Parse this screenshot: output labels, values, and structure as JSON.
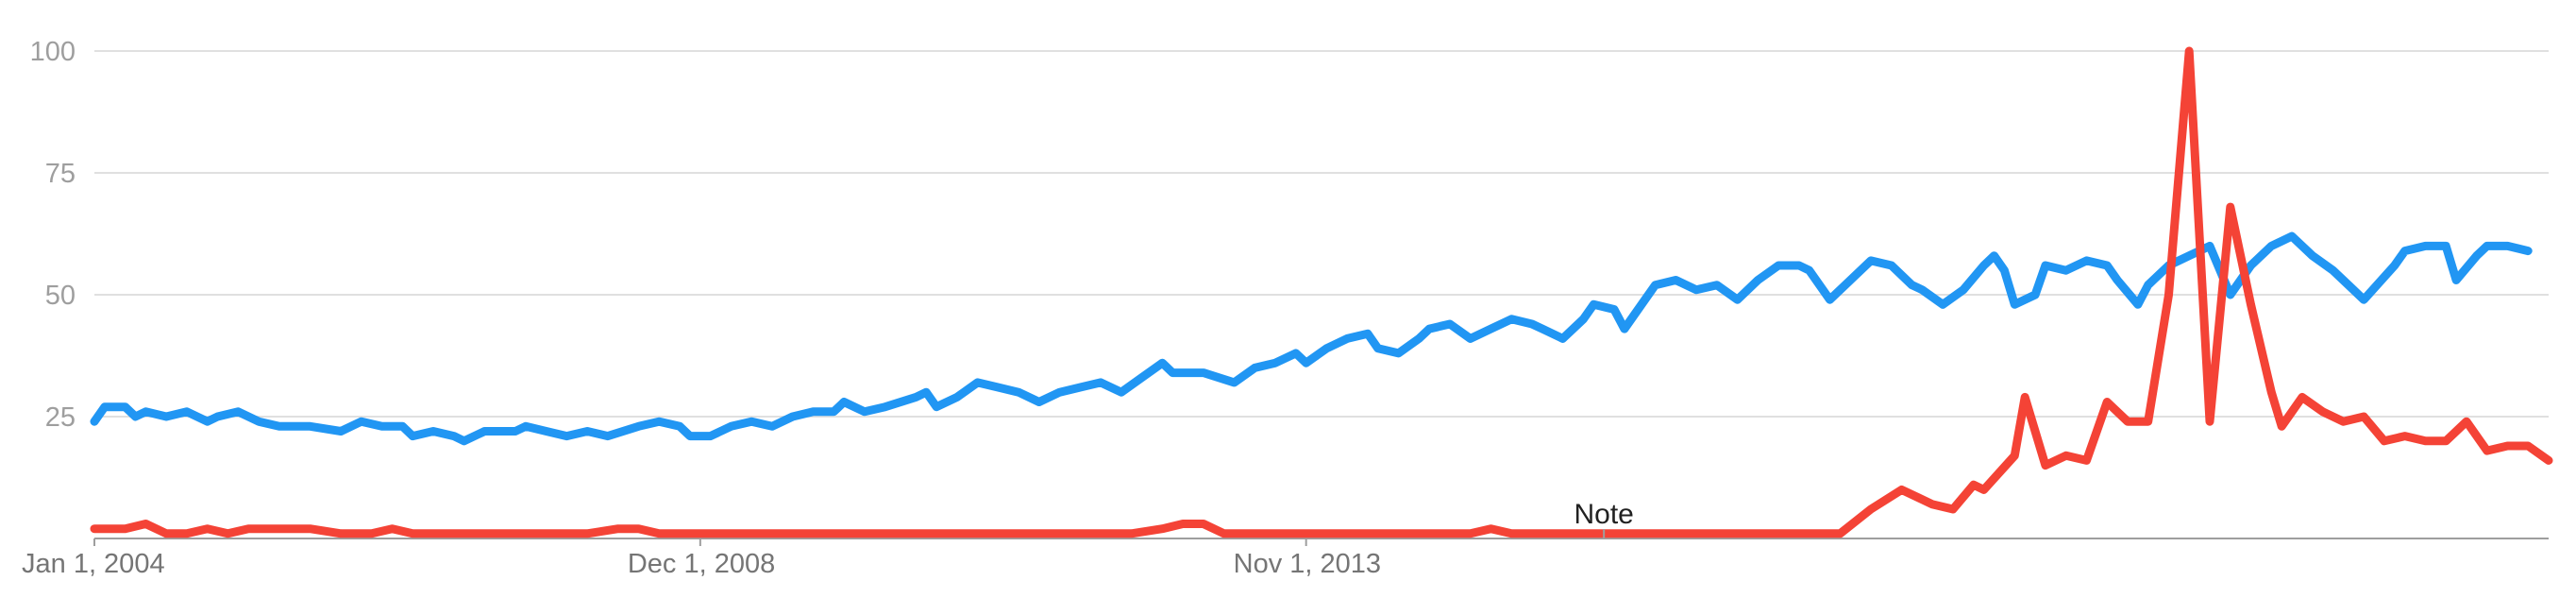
{
  "chart_data": {
    "type": "line",
    "title": "",
    "xlabel": "",
    "ylabel": "",
    "ylim": [
      0,
      100
    ],
    "y_ticks": [
      25,
      50,
      75,
      100
    ],
    "x_ticks": [
      {
        "label": "Jan 1, 2004",
        "date": "2004-01"
      },
      {
        "label": "Dec 1, 2008",
        "date": "2008-12"
      },
      {
        "label": "Nov 1, 2013",
        "date": "2013-11"
      }
    ],
    "grid": true,
    "legend": "none",
    "annotations": [
      {
        "label": "Note",
        "date": "2016-04"
      }
    ],
    "x_start": "2004-01",
    "x_end": "2019-01",
    "series": [
      {
        "color": "#2196f3",
        "points": [
          [
            "2004-01",
            24
          ],
          [
            "2004-02",
            27
          ],
          [
            "2004-04",
            27
          ],
          [
            "2004-05",
            25
          ],
          [
            "2004-06",
            26
          ],
          [
            "2004-08",
            25
          ],
          [
            "2004-10",
            26
          ],
          [
            "2004-12",
            24
          ],
          [
            "2005-01",
            25
          ],
          [
            "2005-03",
            26
          ],
          [
            "2005-05",
            24
          ],
          [
            "2005-07",
            23
          ],
          [
            "2005-10",
            23
          ],
          [
            "2006-01",
            22
          ],
          [
            "2006-03",
            24
          ],
          [
            "2006-05",
            23
          ],
          [
            "2006-07",
            23
          ],
          [
            "2006-08",
            21
          ],
          [
            "2006-10",
            22
          ],
          [
            "2006-12",
            21
          ],
          [
            "2007-01",
            20
          ],
          [
            "2007-03",
            22
          ],
          [
            "2007-06",
            22
          ],
          [
            "2007-07",
            23
          ],
          [
            "2007-09",
            22
          ],
          [
            "2007-11",
            21
          ],
          [
            "2008-01",
            22
          ],
          [
            "2008-03",
            21
          ],
          [
            "2008-06",
            23
          ],
          [
            "2008-08",
            24
          ],
          [
            "2008-10",
            23
          ],
          [
            "2008-11",
            21
          ],
          [
            "2009-01",
            21
          ],
          [
            "2009-03",
            23
          ],
          [
            "2009-05",
            24
          ],
          [
            "2009-07",
            23
          ],
          [
            "2009-09",
            25
          ],
          [
            "2009-11",
            26
          ],
          [
            "2010-01",
            26
          ],
          [
            "2010-02",
            28
          ],
          [
            "2010-04",
            26
          ],
          [
            "2010-06",
            27
          ],
          [
            "2010-09",
            29
          ],
          [
            "2010-10",
            30
          ],
          [
            "2010-11",
            27
          ],
          [
            "2011-01",
            29
          ],
          [
            "2011-03",
            32
          ],
          [
            "2011-05",
            31
          ],
          [
            "2011-07",
            30
          ],
          [
            "2011-09",
            28
          ],
          [
            "2011-11",
            30
          ],
          [
            "2012-01",
            31
          ],
          [
            "2012-03",
            32
          ],
          [
            "2012-05",
            30
          ],
          [
            "2012-07",
            33
          ],
          [
            "2012-09",
            36
          ],
          [
            "2012-10",
            34
          ],
          [
            "2013-01",
            34
          ],
          [
            "2013-04",
            32
          ],
          [
            "2013-06",
            35
          ],
          [
            "2013-08",
            36
          ],
          [
            "2013-10",
            38
          ],
          [
            "2013-11",
            36
          ],
          [
            "2014-01",
            39
          ],
          [
            "2014-03",
            41
          ],
          [
            "2014-05",
            42
          ],
          [
            "2014-06",
            39
          ],
          [
            "2014-08",
            38
          ],
          [
            "2014-10",
            41
          ],
          [
            "2014-11",
            43
          ],
          [
            "2015-01",
            44
          ],
          [
            "2015-03",
            41
          ],
          [
            "2015-05",
            43
          ],
          [
            "2015-07",
            45
          ],
          [
            "2015-09",
            44
          ],
          [
            "2015-10",
            43
          ],
          [
            "2015-12",
            41
          ],
          [
            "2016-02",
            45
          ],
          [
            "2016-03",
            48
          ],
          [
            "2016-05",
            47
          ],
          [
            "2016-06",
            43
          ],
          [
            "2016-07",
            46
          ],
          [
            "2016-09",
            52
          ],
          [
            "2016-11",
            53
          ],
          [
            "2017-01",
            51
          ],
          [
            "2017-03",
            52
          ],
          [
            "2017-05",
            49
          ],
          [
            "2017-07",
            53
          ],
          [
            "2017-09",
            56
          ],
          [
            "2017-11",
            56
          ],
          [
            "2017-12",
            55
          ],
          [
            "2018-02",
            49
          ],
          [
            "2018-04",
            53
          ],
          [
            "2018-06",
            57
          ],
          [
            "2018-08",
            56
          ],
          [
            "2018-10",
            52
          ],
          [
            "2018-11",
            51
          ],
          [
            "2019-01",
            48
          ],
          [
            "2019-03",
            51
          ],
          [
            "2019-05",
            56
          ],
          [
            "2019-06",
            58
          ],
          [
            "2019-07",
            55
          ],
          [
            "2019-08",
            48
          ],
          [
            "2019-10",
            50
          ],
          [
            "2019-11",
            56
          ],
          [
            "2020-01",
            55
          ],
          [
            "2020-03",
            57
          ],
          [
            "2020-05",
            56
          ],
          [
            "2020-06",
            53
          ],
          [
            "2020-08",
            48
          ],
          [
            "2020-09",
            52
          ],
          [
            "2020-11",
            56
          ],
          [
            "2021-01",
            58
          ],
          [
            "2021-03",
            60
          ],
          [
            "2021-05",
            50
          ],
          [
            "2021-07",
            56
          ],
          [
            "2021-09",
            60
          ],
          [
            "2021-11",
            62
          ],
          [
            "2022-01",
            58
          ],
          [
            "2022-03",
            55
          ],
          [
            "2022-05",
            51
          ],
          [
            "2022-06",
            49
          ],
          [
            "2022-09",
            56
          ],
          [
            "2022-10",
            59
          ],
          [
            "2022-12",
            60
          ],
          [
            "2023-02",
            60
          ],
          [
            "2023-03",
            53
          ],
          [
            "2023-05",
            58
          ],
          [
            "2023-06",
            60
          ],
          [
            "2023-08",
            60
          ],
          [
            "2023-10",
            59
          ]
        ]
      },
      {
        "color": "#f44336",
        "points": [
          [
            "2004-01",
            2
          ],
          [
            "2004-04",
            2
          ],
          [
            "2004-06",
            3
          ],
          [
            "2004-08",
            1
          ],
          [
            "2004-10",
            1
          ],
          [
            "2004-12",
            2
          ],
          [
            "2005-02",
            1
          ],
          [
            "2005-04",
            2
          ],
          [
            "2005-07",
            2
          ],
          [
            "2005-10",
            2
          ],
          [
            "2006-01",
            1
          ],
          [
            "2006-04",
            1
          ],
          [
            "2006-06",
            2
          ],
          [
            "2006-08",
            1
          ],
          [
            "2007-01",
            1
          ],
          [
            "2008-01",
            1
          ],
          [
            "2008-04",
            2
          ],
          [
            "2008-06",
            2
          ],
          [
            "2008-08",
            1
          ],
          [
            "2012-01",
            1
          ],
          [
            "2012-06",
            1
          ],
          [
            "2012-09",
            2
          ],
          [
            "2012-11",
            3
          ],
          [
            "2013-01",
            3
          ],
          [
            "2013-03",
            1
          ],
          [
            "2015-01",
            1
          ],
          [
            "2015-03",
            1
          ],
          [
            "2015-05",
            2
          ],
          [
            "2015-07",
            1
          ],
          [
            "2018-01",
            1
          ],
          [
            "2018-03",
            1
          ],
          [
            "2018-06",
            6
          ],
          [
            "2018-09",
            10
          ],
          [
            "2018-12",
            7
          ],
          [
            "2019-02",
            6
          ],
          [
            "2019-04",
            11
          ],
          [
            "2019-05",
            10
          ],
          [
            "2019-08",
            17
          ],
          [
            "2019-09",
            29
          ],
          [
            "2019-11",
            15
          ],
          [
            "2020-01",
            17
          ],
          [
            "2020-03",
            16
          ],
          [
            "2020-05",
            28
          ],
          [
            "2020-07",
            24
          ],
          [
            "2020-09",
            24
          ],
          [
            "2020-11",
            50
          ],
          [
            "2021-01",
            100
          ],
          [
            "2021-03",
            24
          ],
          [
            "2021-05",
            68
          ],
          [
            "2021-07",
            48
          ],
          [
            "2021-09",
            30
          ],
          [
            "2021-10",
            23
          ],
          [
            "2021-12",
            29
          ],
          [
            "2022-02",
            26
          ],
          [
            "2022-04",
            24
          ],
          [
            "2022-06",
            25
          ],
          [
            "2022-08",
            20
          ],
          [
            "2022-10",
            21
          ],
          [
            "2022-12",
            20
          ],
          [
            "2023-02",
            20
          ],
          [
            "2023-04",
            24
          ],
          [
            "2023-06",
            18
          ],
          [
            "2023-08",
            19
          ],
          [
            "2023-10",
            19
          ],
          [
            "2023-12",
            16
          ]
        ]
      }
    ]
  }
}
